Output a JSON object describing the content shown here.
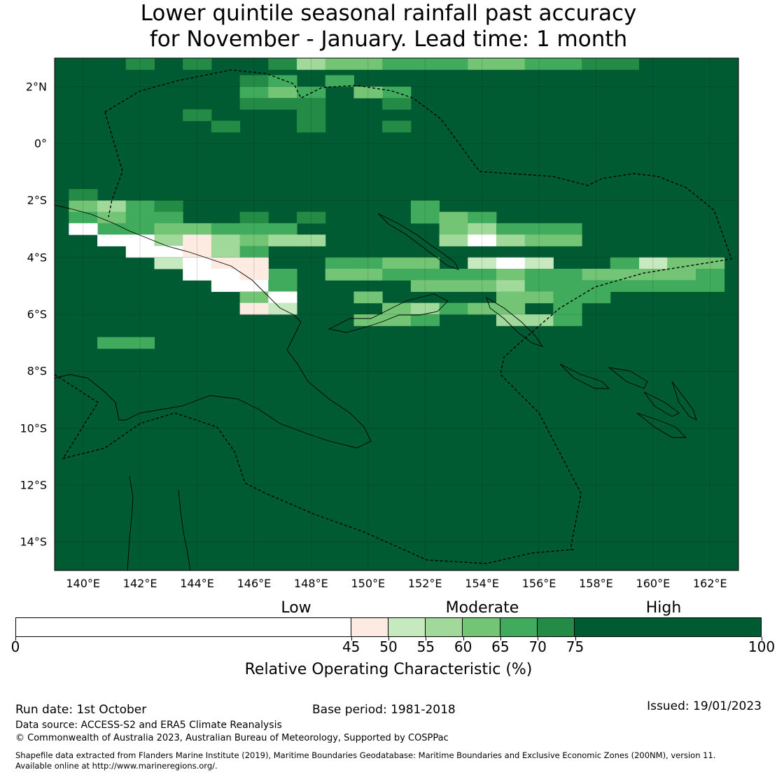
{
  "title": {
    "line1": "Lower quintile seasonal rainfall past accuracy",
    "line2": "for November - January. Lead time: 1 month"
  },
  "map": {
    "lon_range": [
      139,
      163
    ],
    "lat_range": [
      -15,
      3
    ],
    "lat_labels": [
      {
        "lat": 2,
        "label": "2°N"
      },
      {
        "lat": 0,
        "label": "0°"
      },
      {
        "lat": -2,
        "label": "2°S"
      },
      {
        "lat": -4,
        "label": "4°S"
      },
      {
        "lat": -6,
        "label": "6°S"
      },
      {
        "lat": -8,
        "label": "8°S"
      },
      {
        "lat": -10,
        "label": "10°S"
      },
      {
        "lat": -12,
        "label": "12°S"
      },
      {
        "lat": -14,
        "label": "14°S"
      }
    ],
    "lon_labels": [
      {
        "lon": 140,
        "label": "140°E"
      },
      {
        "lon": 142,
        "label": "142°E"
      },
      {
        "lon": 144,
        "label": "144°E"
      },
      {
        "lon": 146,
        "label": "146°E"
      },
      {
        "lon": 148,
        "label": "148°E"
      },
      {
        "lon": 150,
        "label": "150°E"
      },
      {
        "lon": 152,
        "label": "152°E"
      },
      {
        "lon": 154,
        "label": "154°E"
      },
      {
        "lon": 156,
        "label": "156°E"
      },
      {
        "lon": 158,
        "label": "158°E"
      },
      {
        "lon": 160,
        "label": "160°E"
      },
      {
        "lon": 162,
        "label": "162°E"
      }
    ],
    "background_class": 7,
    "cells": [
      [
        142,
        2.8,
        6
      ],
      [
        144,
        2.8,
        6
      ],
      [
        147,
        2.8,
        6
      ],
      [
        148,
        2.8,
        3
      ],
      [
        149,
        2.8,
        4
      ],
      [
        150,
        2.8,
        4
      ],
      [
        151,
        2.8,
        5
      ],
      [
        152,
        2.8,
        5
      ],
      [
        153,
        2.8,
        5
      ],
      [
        154,
        2.8,
        4
      ],
      [
        155,
        2.8,
        4
      ],
      [
        156,
        2.8,
        5
      ],
      [
        157,
        2.8,
        5
      ],
      [
        158,
        2.8,
        6
      ],
      [
        159,
        2.8,
        6
      ],
      [
        146,
        2.2,
        6
      ],
      [
        147,
        2.2,
        5
      ],
      [
        149,
        2.2,
        5
      ],
      [
        146,
        1.8,
        5
      ],
      [
        147,
        1.8,
        4
      ],
      [
        148,
        1.8,
        5
      ],
      [
        151,
        1.8,
        5
      ],
      [
        150,
        1.8,
        4
      ],
      [
        146,
        1.4,
        6
      ],
      [
        147,
        1.4,
        6
      ],
      [
        148,
        1.4,
        6
      ],
      [
        151,
        1.4,
        6
      ],
      [
        148,
        1.0,
        6
      ],
      [
        144,
        1.0,
        6
      ],
      [
        145,
        0.6,
        6
      ],
      [
        151,
        0.6,
        6
      ],
      [
        148,
        0.6,
        6
      ],
      [
        140,
        -1.8,
        6
      ],
      [
        140,
        -2.2,
        4
      ],
      [
        141,
        -2.2,
        3
      ],
      [
        142,
        -2.2,
        5
      ],
      [
        143,
        -2.2,
        6
      ],
      [
        140,
        -2.6,
        5
      ],
      [
        141,
        -2.6,
        4
      ],
      [
        142,
        -2.6,
        5
      ],
      [
        143,
        -2.6,
        5
      ],
      [
        146,
        -2.6,
        6
      ],
      [
        148,
        -2.6,
        6
      ],
      [
        152,
        -2.2,
        5
      ],
      [
        152,
        -2.6,
        5
      ],
      [
        153,
        -2.6,
        4
      ],
      [
        154,
        -2.6,
        5
      ],
      [
        141,
        -3.0,
        5
      ],
      [
        142,
        -3.0,
        5
      ],
      [
        143,
        -3.0,
        4
      ],
      [
        144,
        -3.0,
        4
      ],
      [
        145,
        -3.0,
        5
      ],
      [
        146,
        -3.0,
        5
      ],
      [
        147,
        -3.0,
        5
      ],
      [
        153,
        -3.0,
        4
      ],
      [
        154,
        -3.0,
        3
      ],
      [
        155,
        -3.0,
        5
      ],
      [
        156,
        -3.0,
        5
      ],
      [
        157,
        -3.0,
        5
      ],
      [
        140,
        -3.0,
        0
      ],
      [
        141,
        -3.4,
        0
      ],
      [
        142,
        -3.4,
        0
      ],
      [
        143,
        -3.4,
        3
      ],
      [
        144,
        -3.4,
        1
      ],
      [
        145,
        -3.4,
        3
      ],
      [
        146,
        -3.4,
        4
      ],
      [
        147,
        -3.4,
        3
      ],
      [
        148,
        -3.4,
        3
      ],
      [
        153,
        -3.4,
        3
      ],
      [
        154,
        -3.4,
        0
      ],
      [
        155,
        -3.4,
        3
      ],
      [
        156,
        -3.4,
        4
      ],
      [
        157,
        -3.4,
        4
      ],
      [
        142,
        -3.8,
        0
      ],
      [
        143,
        -3.8,
        0
      ],
      [
        144,
        -3.8,
        1
      ],
      [
        145,
        -3.8,
        3
      ],
      [
        146,
        -3.8,
        5
      ],
      [
        149,
        -4.2,
        5
      ],
      [
        150,
        -4.2,
        5
      ],
      [
        151,
        -4.2,
        4
      ],
      [
        152,
        -4.2,
        4
      ],
      [
        154,
        -4.2,
        2
      ],
      [
        155,
        -4.2,
        0
      ],
      [
        156,
        -4.2,
        2
      ],
      [
        143,
        -4.2,
        2
      ],
      [
        144,
        -4.2,
        0
      ],
      [
        145,
        -4.2,
        1
      ],
      [
        146,
        -4.2,
        1
      ],
      [
        147,
        -4.6,
        5
      ],
      [
        149,
        -4.6,
        4
      ],
      [
        150,
        -4.6,
        4
      ],
      [
        151,
        -4.6,
        5
      ],
      [
        152,
        -4.6,
        5
      ],
      [
        153,
        -4.6,
        5
      ],
      [
        154,
        -4.6,
        5
      ],
      [
        155,
        -4.6,
        4
      ],
      [
        158,
        -4.6,
        4
      ],
      [
        159,
        -4.6,
        4
      ],
      [
        160,
        -4.2,
        2
      ],
      [
        161,
        -4.2,
        4
      ],
      [
        162,
        -4.2,
        4
      ],
      [
        144,
        -4.6,
        0
      ],
      [
        145,
        -4.6,
        0
      ],
      [
        146,
        -4.6,
        1
      ],
      [
        156,
        -4.6,
        5
      ],
      [
        157,
        -4.6,
        5
      ],
      [
        159,
        -4.2,
        5
      ],
      [
        160,
        -4.6,
        4
      ],
      [
        161,
        -4.6,
        4
      ],
      [
        162,
        -4.6,
        5
      ],
      [
        145,
        -5.0,
        0
      ],
      [
        146,
        -5.0,
        0
      ],
      [
        147,
        -5.0,
        5
      ],
      [
        152,
        -5.0,
        4
      ],
      [
        153,
        -5.0,
        4
      ],
      [
        154,
        -5.0,
        4
      ],
      [
        155,
        -5.0,
        3
      ],
      [
        156,
        -5.0,
        5
      ],
      [
        157,
        -5.0,
        5
      ],
      [
        158,
        -5.0,
        5
      ],
      [
        159,
        -5.0,
        5
      ],
      [
        160,
        -5.0,
        5
      ],
      [
        161,
        -5.0,
        5
      ],
      [
        162,
        -5.0,
        5
      ],
      [
        146,
        -5.4,
        4
      ],
      [
        147,
        -5.4,
        0
      ],
      [
        150,
        -5.4,
        4
      ],
      [
        155,
        -5.4,
        4
      ],
      [
        156,
        -5.4,
        4
      ],
      [
        157,
        -5.4,
        5
      ],
      [
        158,
        -5.4,
        5
      ],
      [
        146,
        -5.8,
        1
      ],
      [
        147,
        -5.8,
        2
      ],
      [
        151,
        -5.8,
        4
      ],
      [
        152,
        -5.8,
        3
      ],
      [
        153,
        -5.8,
        5
      ],
      [
        154,
        -5.8,
        4
      ],
      [
        155,
        -5.8,
        4
      ],
      [
        157,
        -5.8,
        5
      ],
      [
        150,
        -6.2,
        4
      ],
      [
        151,
        -6.2,
        4
      ],
      [
        152,
        -6.2,
        5
      ],
      [
        155,
        -6.2,
        3
      ],
      [
        156,
        -6.2,
        3
      ],
      [
        157,
        -6.2,
        5
      ],
      [
        141,
        -7.0,
        5
      ],
      [
        142,
        -7.0,
        5
      ]
    ]
  },
  "colorbar": {
    "categories": [
      {
        "label": "Low",
        "value": 55
      },
      {
        "label": "Moderate",
        "value": 70
      },
      {
        "label": "High",
        "value": 92
      }
    ],
    "bins": [
      {
        "from": 0,
        "to": 45,
        "color": "#ffffff"
      },
      {
        "from": 45,
        "to": 50,
        "color": "#fdebe2"
      },
      {
        "from": 50,
        "to": 55,
        "color": "#c7e9c0"
      },
      {
        "from": 55,
        "to": 60,
        "color": "#a1d99b"
      },
      {
        "from": 60,
        "to": 65,
        "color": "#74c476"
      },
      {
        "from": 65,
        "to": 70,
        "color": "#41ab5d"
      },
      {
        "from": 70,
        "to": 75,
        "color": "#238b45"
      },
      {
        "from": 75,
        "to": 100,
        "color": "#005a32"
      }
    ],
    "ticks": [
      "0",
      "45",
      "50",
      "55",
      "60",
      "65",
      "70",
      "75",
      "100"
    ],
    "label": "Relative Operating Characteristic (%)"
  },
  "footer": {
    "run_date": "Run date: 1st October",
    "base_period": "Base period: 1981-2018",
    "issued": "Issued: 19/01/2023",
    "data_source": "Data source: ACCESS-S2 and ERA5 Climate Reanalysis",
    "copyright": "© Commonwealth of Australia 2023, Australian Bureau of Meteorology, Supported by COSPPac",
    "shapefile_line1": "Shapefile data extracted from Flanders Marine Institute (2019), Maritime Boundaries Geodatabase: Maritime Boundaries and Exclusive Economic Zones (200NM), version 11.",
    "shapefile_line2": "Available online at http://www.marineregions.org/."
  }
}
